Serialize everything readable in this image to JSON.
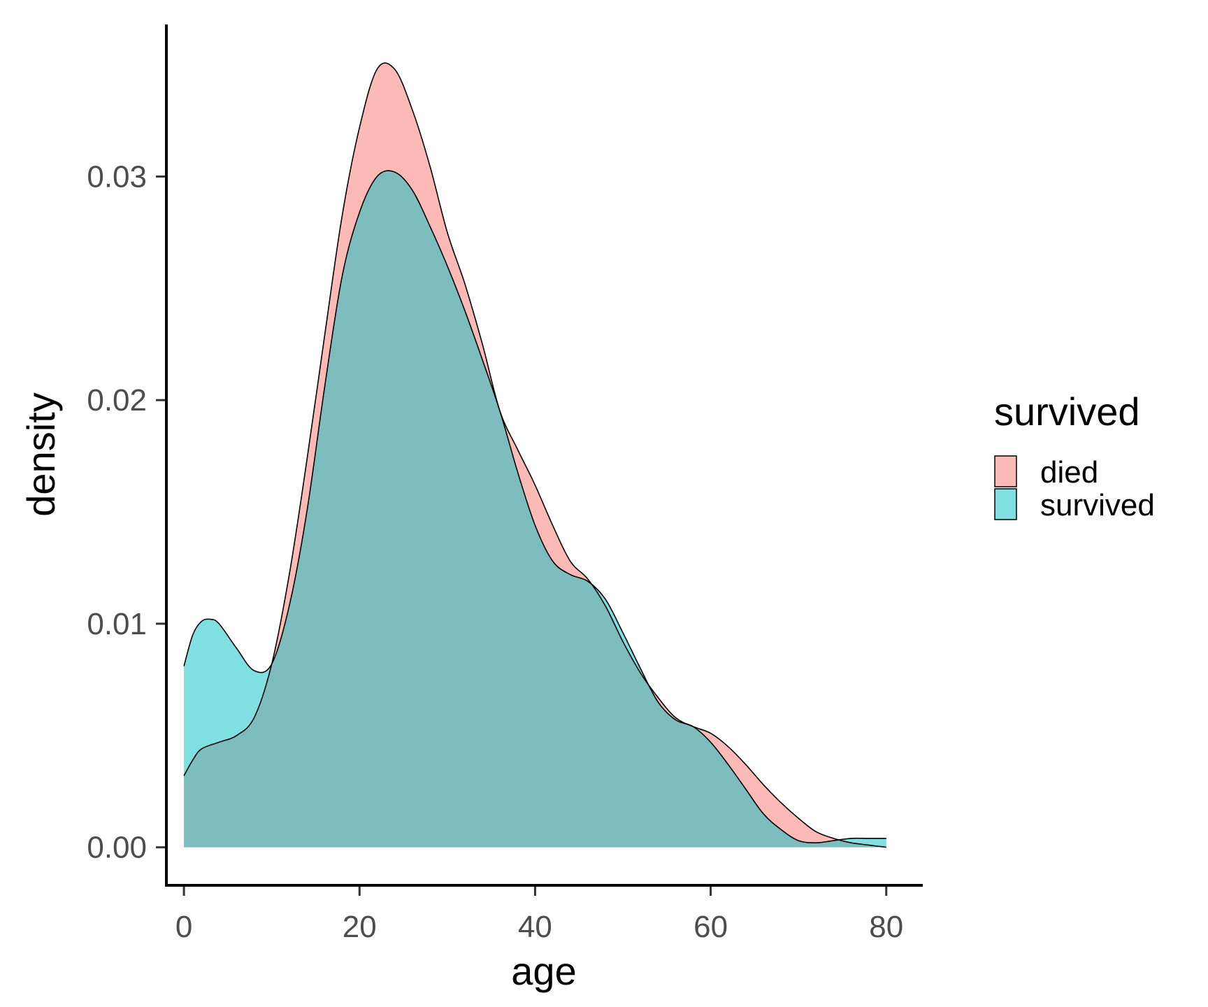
{
  "chart_data": {
    "type": "area",
    "subtype": "density",
    "xlabel": "age",
    "ylabel": "density",
    "xlim": [
      -2,
      84
    ],
    "ylim": [
      -0.0017,
      0.0368
    ],
    "xticks": [
      0,
      20,
      40,
      60,
      80
    ],
    "xtick_labels": [
      "0",
      "20",
      "40",
      "60",
      "80"
    ],
    "yticks": [
      0.0,
      0.01,
      0.02,
      0.03
    ],
    "ytick_labels": [
      "0.00",
      "0.01",
      "0.02",
      "0.03"
    ],
    "grid": false,
    "legend": {
      "title": "survived",
      "position": "right",
      "entries": [
        {
          "label": "died",
          "color": "#F8766D"
        },
        {
          "label": "survived",
          "color": "#00BFC4"
        }
      ]
    },
    "fill_alpha": 0.5,
    "series": [
      {
        "name": "died",
        "color": "#F8766D",
        "x": [
          0,
          1,
          2,
          4,
          6,
          8,
          10,
          12,
          14,
          16,
          18,
          20,
          22,
          24,
          26,
          28,
          30,
          32,
          34,
          36,
          38,
          40,
          42,
          44,
          46,
          48,
          50,
          52,
          54,
          56,
          58,
          60,
          62,
          64,
          66,
          68,
          70,
          72,
          74,
          76,
          78,
          80
        ],
        "y": [
          0.0032,
          0.0039,
          0.0044,
          0.0047,
          0.005,
          0.0058,
          0.0082,
          0.0122,
          0.0173,
          0.0228,
          0.0282,
          0.0322,
          0.0348,
          0.0348,
          0.033,
          0.0305,
          0.0275,
          0.0252,
          0.0225,
          0.0195,
          0.0178,
          0.0162,
          0.0144,
          0.0128,
          0.012,
          0.0108,
          0.0092,
          0.0078,
          0.0067,
          0.0058,
          0.0054,
          0.0051,
          0.0045,
          0.0037,
          0.0028,
          0.002,
          0.0013,
          0.0007,
          0.0004,
          0.0002,
          0.0001,
          0.0
        ]
      },
      {
        "name": "survived",
        "color": "#00BFC4",
        "x": [
          0,
          1,
          2,
          3,
          4,
          6,
          8,
          10,
          12,
          14,
          16,
          18,
          20,
          22,
          24,
          26,
          28,
          30,
          32,
          34,
          36,
          38,
          40,
          42,
          44,
          46,
          48,
          50,
          52,
          54,
          56,
          58,
          60,
          62,
          64,
          66,
          68,
          70,
          72,
          74,
          76,
          78,
          80
        ],
        "y": [
          0.0081,
          0.0095,
          0.0101,
          0.0102,
          0.01,
          0.0089,
          0.0079,
          0.0082,
          0.0108,
          0.015,
          0.0205,
          0.0255,
          0.0284,
          0.03,
          0.0302,
          0.0294,
          0.0278,
          0.026,
          0.024,
          0.0218,
          0.0195,
          0.0168,
          0.0144,
          0.0128,
          0.0122,
          0.0119,
          0.0111,
          0.0096,
          0.008,
          0.0065,
          0.0057,
          0.0054,
          0.0047,
          0.0037,
          0.0026,
          0.0015,
          0.0008,
          0.0003,
          0.0002,
          0.0003,
          0.0004,
          0.0004,
          0.0004
        ]
      }
    ]
  }
}
